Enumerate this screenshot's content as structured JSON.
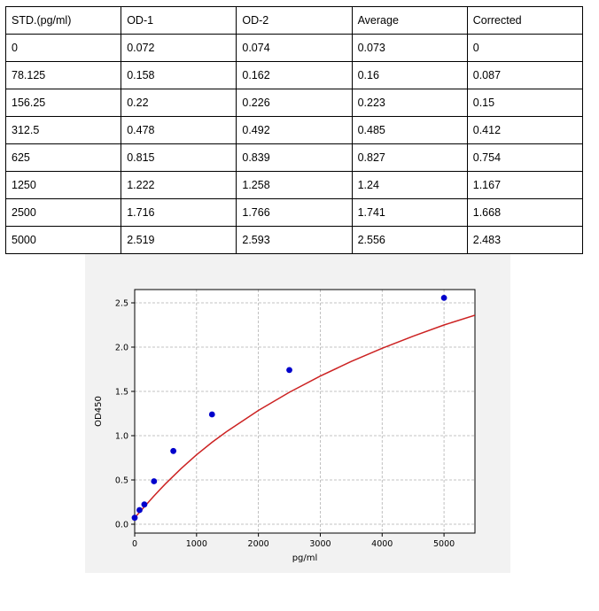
{
  "table": {
    "headers": [
      "STD.(pg/ml)",
      "OD-1",
      "OD-2",
      "Average",
      "Corrected"
    ],
    "rows": [
      [
        "0",
        "0.072",
        "0.074",
        "0.073",
        "0"
      ],
      [
        "78.125",
        "0.158",
        "0.162",
        "0.16",
        "0.087"
      ],
      [
        "156.25",
        "0.22",
        "0.226",
        "0.223",
        "0.15"
      ],
      [
        "312.5",
        "0.478",
        "0.492",
        "0.485",
        "0.412"
      ],
      [
        "625",
        "0.815",
        "0.839",
        "0.827",
        "0.754"
      ],
      [
        "1250",
        "1.222",
        "1.258",
        "1.24",
        "1.167"
      ],
      [
        "2500",
        "1.716",
        "1.766",
        "1.741",
        "1.668"
      ],
      [
        "5000",
        "2.519",
        "2.593",
        "2.556",
        "2.483"
      ]
    ]
  },
  "chart_data": {
    "type": "scatter",
    "title": "",
    "xlabel": "pg/ml",
    "ylabel": "OD450",
    "xlim": [
      0,
      5500
    ],
    "ylim": [
      -0.1,
      2.65
    ],
    "xticks": [
      0,
      1000,
      2000,
      3000,
      4000,
      5000
    ],
    "yticks": [
      0.0,
      0.5,
      1.0,
      1.5,
      2.0,
      2.5
    ],
    "xtick_labels": [
      "0",
      "1000",
      "2000",
      "3000",
      "4000",
      "5000"
    ],
    "ytick_labels": [
      "0.0",
      "0.5",
      "1.0",
      "1.5",
      "2.0",
      "2.5"
    ],
    "grid": true,
    "points": {
      "x": [
        0,
        78.125,
        156.25,
        312.5,
        625,
        1250,
        2500,
        5000
      ],
      "y": [
        0.073,
        0.16,
        0.223,
        0.485,
        0.827,
        1.24,
        1.741,
        2.556
      ],
      "color": "#0000cc"
    },
    "fit_curve": {
      "color": "#cc2222",
      "x": [
        0,
        50,
        100,
        200,
        300,
        400,
        500,
        750,
        1000,
        1250,
        1500,
        2000,
        2500,
        3000,
        3500,
        4000,
        4500,
        5000,
        5500
      ],
      "y": [
        0.073,
        0.112,
        0.152,
        0.231,
        0.31,
        0.385,
        0.458,
        0.628,
        0.784,
        0.925,
        1.053,
        1.285,
        1.49,
        1.673,
        1.838,
        1.987,
        2.123,
        2.25,
        2.36
      ]
    }
  }
}
